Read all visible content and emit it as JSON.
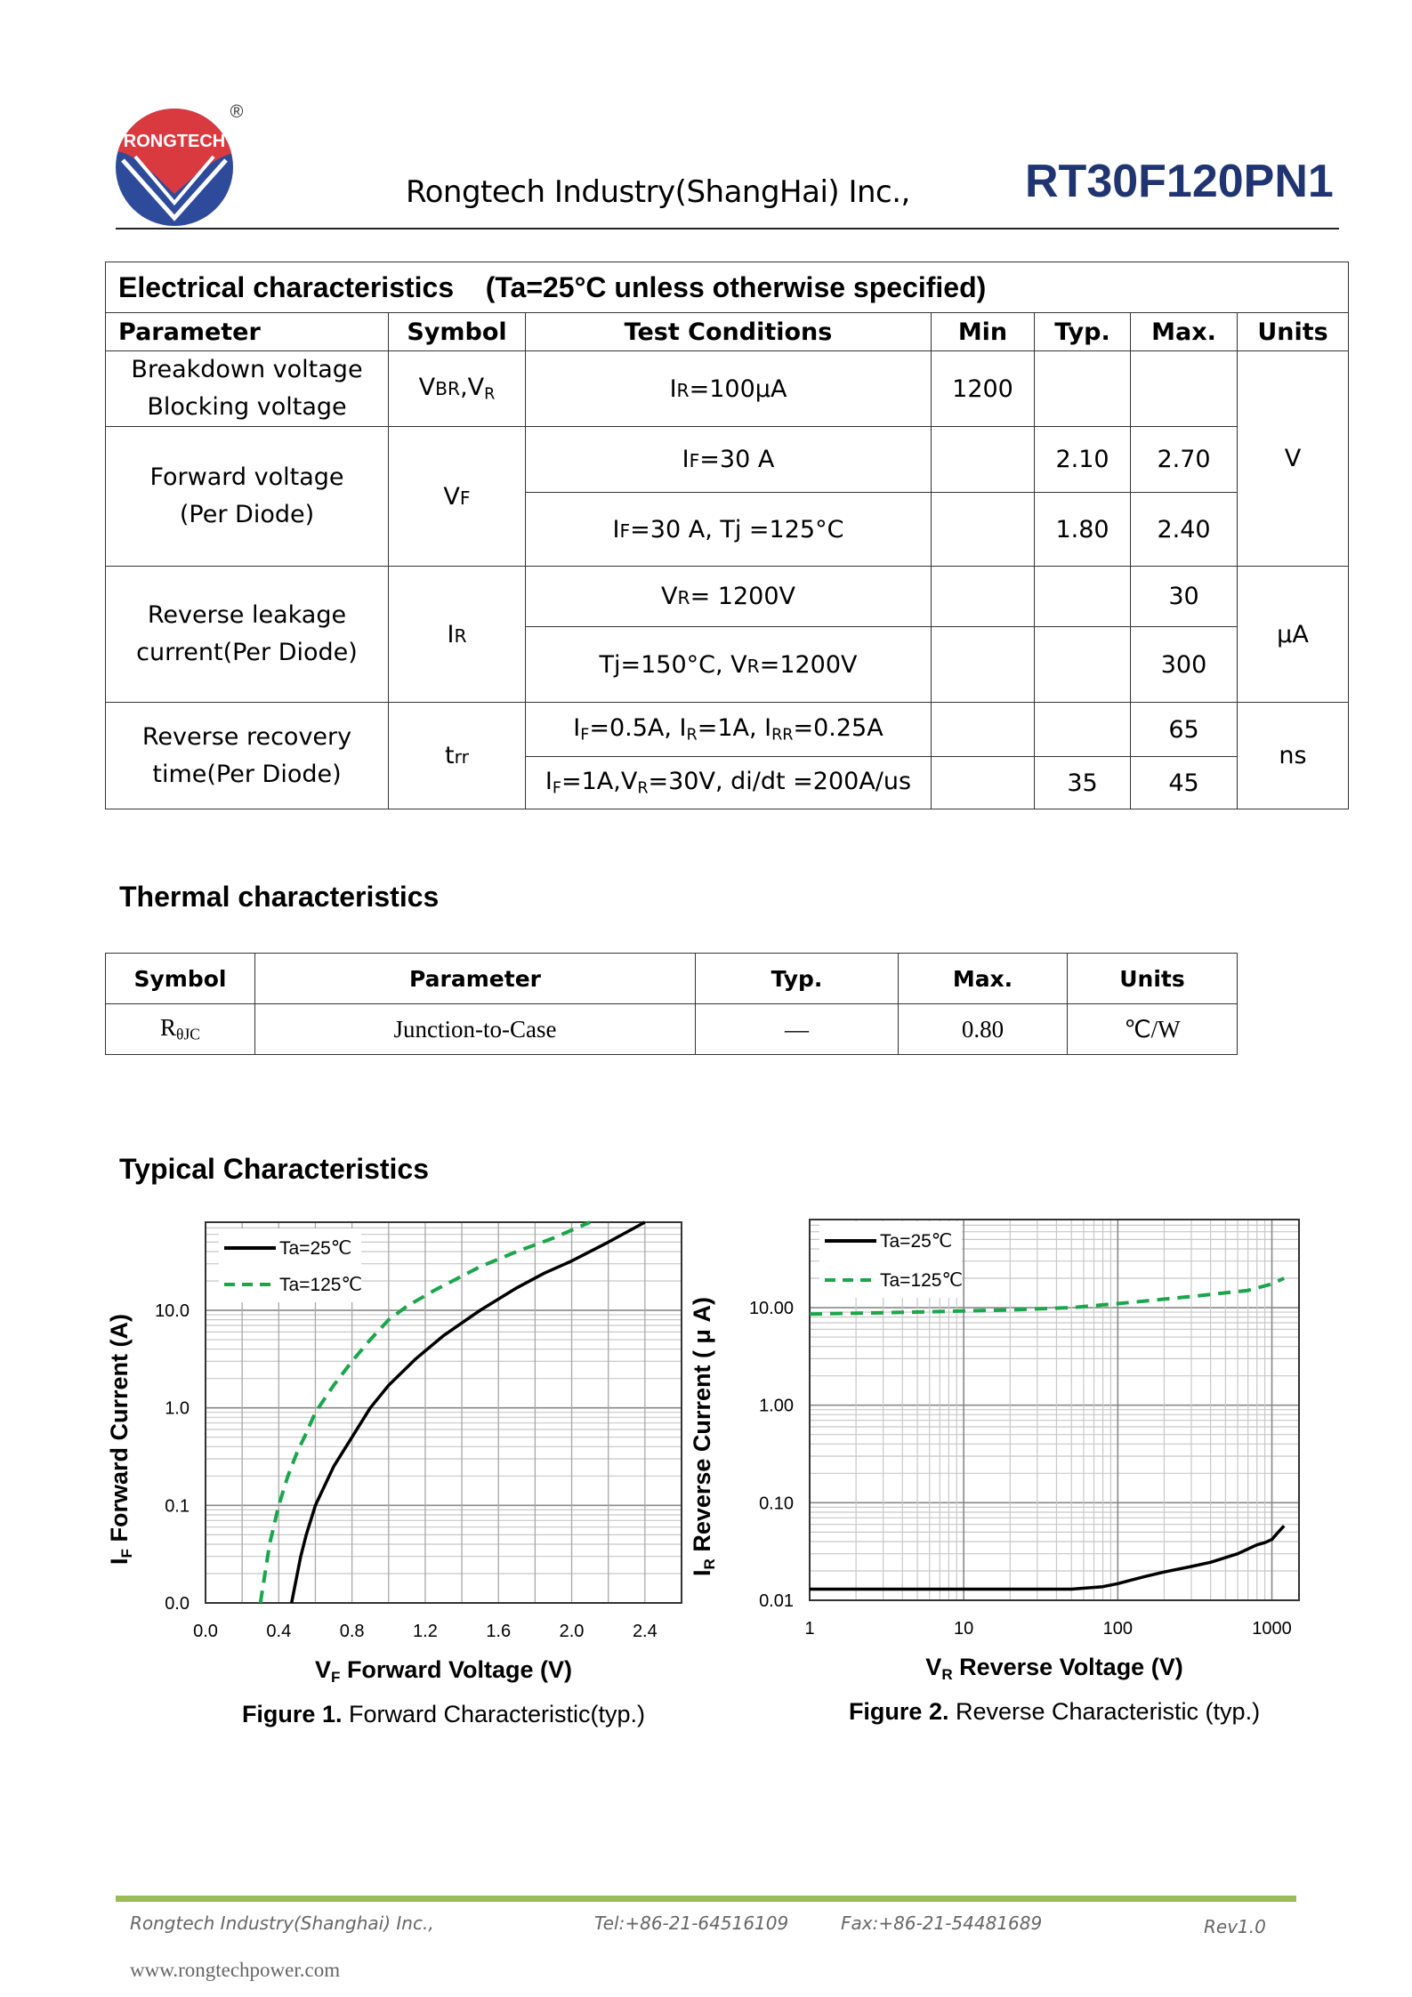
{
  "header": {
    "logo_text": "RONGTECH",
    "registered_mark": "®",
    "company": "Rongtech Industry(ShangHai) Inc.,",
    "part_number": "RT30F120PN1"
  },
  "electrical": {
    "title": "Electrical characteristics    (Ta=25°C unless otherwise specified)",
    "columns": [
      "Parameter",
      "Symbol",
      "Test Conditions",
      "Min",
      "Typ.",
      "Max.",
      "Units"
    ],
    "rows": [
      {
        "param": [
          "Breakdown voltage",
          "Blocking voltage"
        ],
        "symbol": [
          [
            "V",
            ""
          ],
          [
            "BR",
            "s"
          ],
          [
            ",V",
            ""
          ],
          [
            "R",
            "sub"
          ]
        ],
        "conds": [
          {
            "text": [
              [
                "I",
                ""
              ],
              [
                "R",
                "s"
              ],
              [
                "=100μA",
                ""
              ]
            ],
            "min": "1200",
            "typ": "",
            "max": ""
          }
        ],
        "units": "V"
      },
      {
        "param": [
          "Forward voltage",
          "(Per Diode)"
        ],
        "symbol": [
          [
            "V",
            ""
          ],
          [
            "F",
            "s"
          ]
        ],
        "conds": [
          {
            "text": [
              [
                "I",
                ""
              ],
              [
                "F",
                "s"
              ],
              [
                "=30 A",
                ""
              ]
            ],
            "min": "",
            "typ": "2.10",
            "max": "2.70"
          },
          {
            "text": [
              [
                "I",
                ""
              ],
              [
                "F",
                "s"
              ],
              [
                "=30 A, Tj =125°C",
                ""
              ]
            ],
            "min": "",
            "typ": "1.80",
            "max": "2.40"
          }
        ]
      },
      {
        "param": [
          "Reverse leakage",
          "current(Per Diode)"
        ],
        "symbol": [
          [
            "I",
            ""
          ],
          [
            "R",
            "s"
          ]
        ],
        "conds": [
          {
            "text": [
              [
                "V",
                ""
              ],
              [
                "R",
                "s"
              ],
              [
                "= 1200V",
                ""
              ]
            ],
            "min": "",
            "typ": "",
            "max": "30"
          },
          {
            "text": [
              [
                "Tj=150°C, V",
                ""
              ],
              [
                "R",
                "s"
              ],
              [
                "=1200V",
                ""
              ]
            ],
            "min": "",
            "typ": "",
            "max": "300"
          }
        ],
        "units": "μA"
      },
      {
        "param": [
          "Reverse recovery",
          "time(Per Diode)"
        ],
        "symbol": [
          [
            "t",
            ""
          ],
          [
            "rr",
            "s"
          ]
        ],
        "conds": [
          {
            "text": [
              [
                "I",
                ""
              ],
              [
                "F",
                "sub"
              ],
              [
                "=0.5A, I",
                ""
              ],
              [
                "R",
                "sub"
              ],
              [
                "=1A, I",
                ""
              ],
              [
                "RR",
                "sub"
              ],
              [
                "=0.25A",
                ""
              ]
            ],
            "min": "",
            "typ": "",
            "max": "65"
          },
          {
            "text": [
              [
                "I",
                ""
              ],
              [
                "F",
                "sub"
              ],
              [
                "=1A,V",
                ""
              ],
              [
                "R",
                "sub"
              ],
              [
                "=30V, di/dt =200A/us",
                ""
              ]
            ],
            "min": "",
            "typ": "35",
            "max": "45"
          }
        ],
        "units": "ns"
      }
    ]
  },
  "thermal": {
    "title": "Thermal characteristics",
    "columns": [
      "Symbol",
      "Parameter",
      "Typ.",
      "Max.",
      "Units"
    ],
    "row": {
      "symbol_main": "R",
      "symbol_sub": "θJC",
      "param": "Junction-to-Case",
      "typ": "—",
      "max": "0.80",
      "units": "℃/W"
    }
  },
  "typical": {
    "title": "Typical Characteristics"
  },
  "chart_data": [
    {
      "type": "line",
      "title": "Figure 1. Forward Characteristic(typ.)",
      "caption_bold": "Figure 1.",
      "caption_rest": " Forward Characteristic(typ.)",
      "xlabel_main": "V",
      "xlabel_sub": "F",
      "xlabel_rest": " Forward Voltage (V)",
      "ylabel_main": "I",
      "ylabel_sub": "F",
      "ylabel_rest": " Forward Current (A)",
      "xscale": "linear",
      "xlim": [
        0,
        2.6
      ],
      "ylim": [
        0.01,
        80
      ],
      "yscale": "log",
      "xticks": [
        0,
        0.4,
        0.8,
        1.2,
        1.6,
        2.0,
        2.4
      ],
      "xtick_labels": [
        "0.0",
        "0.4",
        "0.8",
        "1.2",
        "1.6",
        "2.0",
        "2.4"
      ],
      "yticks": [
        0.01,
        0.1,
        1,
        10
      ],
      "ytick_labels": [
        "0.0",
        "0.1",
        "1.0",
        "10.0"
      ],
      "grid": true,
      "legend": "top-left",
      "series": [
        {
          "name": "Ta=25℃",
          "color": "#000000",
          "dash": false,
          "x": [
            0.47,
            0.52,
            0.55,
            0.6,
            0.7,
            0.8,
            0.9,
            1.0,
            1.15,
            1.3,
            1.5,
            1.7,
            1.85,
            2.0,
            2.2,
            2.4
          ],
          "y": [
            0.01,
            0.03,
            0.05,
            0.1,
            0.25,
            0.5,
            1.0,
            1.7,
            3.2,
            5.5,
            10,
            17,
            24,
            32,
            50,
            80
          ]
        },
        {
          "name": "Ta=125℃",
          "color": "#1aa64a",
          "dash": true,
          "x": [
            0.3,
            0.35,
            0.4,
            0.45,
            0.5,
            0.55,
            0.6,
            0.7,
            0.8,
            0.9,
            1.0,
            1.1,
            1.25,
            1.5,
            1.7,
            1.9,
            2.1
          ],
          "y": [
            0.01,
            0.04,
            0.1,
            0.2,
            0.35,
            0.55,
            0.9,
            1.7,
            3.0,
            5.0,
            8.0,
            11,
            16,
            28,
            40,
            55,
            80
          ]
        }
      ]
    },
    {
      "type": "line",
      "title": "Figure 2. Reverse Characteristic (typ.)",
      "caption_bold": "Figure 2.",
      "caption_rest": " Reverse Characteristic (typ.)",
      "xlabel_main": "V",
      "xlabel_sub": "R",
      "xlabel_rest": " Reverse Voltage (V)",
      "ylabel_main": "I",
      "ylabel_sub": "R",
      "ylabel_rest": " Reverse Current ( μ A)",
      "xscale": "log",
      "xlim": [
        1,
        1500
      ],
      "ylim": [
        0.01,
        80
      ],
      "yscale": "log",
      "xticks": [
        1,
        10,
        100,
        1000
      ],
      "xtick_labels": [
        "1",
        "10",
        "100",
        "1000"
      ],
      "yticks": [
        0.01,
        0.1,
        1,
        10
      ],
      "ytick_labels": [
        "0.01",
        "0.10",
        "1.00",
        "10.00"
      ],
      "grid": true,
      "legend": "top-left",
      "series": [
        {
          "name": "Ta=25℃",
          "color": "#000000",
          "dash": false,
          "x": [
            1,
            10,
            50,
            80,
            100,
            150,
            200,
            300,
            400,
            600,
            800,
            900,
            1000,
            1100,
            1200
          ],
          "y": [
            0.013,
            0.013,
            0.013,
            0.0138,
            0.0148,
            0.0175,
            0.0195,
            0.0222,
            0.0245,
            0.03,
            0.037,
            0.039,
            0.042,
            0.05,
            0.058
          ]
        },
        {
          "name": "Ta=125℃",
          "color": "#1aa64a",
          "dash": true,
          "x": [
            1,
            5,
            20,
            50,
            100,
            300,
            700,
            1000,
            1200
          ],
          "y": [
            8.6,
            9.0,
            9.5,
            10.0,
            11.0,
            13.0,
            15.0,
            17.5,
            20.0
          ]
        }
      ]
    }
  ],
  "footer": {
    "company": "Rongtech Industry(Shanghai) Inc.,",
    "tel": "Tel:+86-21-64516109",
    "fax": "Fax:+86-21-54481689",
    "rev": "Rev1.0",
    "website": "www.rongtechpower.com",
    "accent_color": "#9bbb59"
  }
}
